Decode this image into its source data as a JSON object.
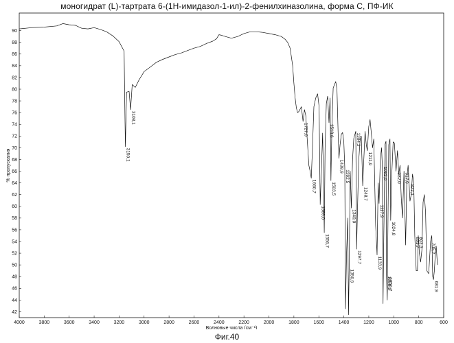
{
  "title": "моногидрат (L)-тартрата 6-(1Н-имидазол-1-ил)-2-фенилхиназолина, форма С, ПФ-ИК",
  "caption": "Фиг.40",
  "chart_data": {
    "type": "line",
    "ylabel": "% пропускания",
    "xlabel": "Волновые числа (см⁻¹)",
    "xlim": [
      4000,
      600
    ],
    "ylim": [
      41,
      93
    ],
    "x_ticks": [
      4000,
      3800,
      3600,
      3400,
      3200,
      3000,
      2800,
      2600,
      2400,
      2200,
      2000,
      1800,
      1600,
      1400,
      1200,
      1000,
      800,
      600
    ],
    "y_ticks": [
      42,
      44,
      46,
      48,
      50,
      52,
      54,
      56,
      58,
      60,
      62,
      64,
      66,
      68,
      70,
      72,
      74,
      76,
      78,
      80,
      82,
      84,
      86,
      88,
      90
    ],
    "grid": false,
    "series": [
      {
        "x": [
          4000,
          3900,
          3800,
          3700,
          3650,
          3600,
          3550,
          3500,
          3450,
          3400,
          3350,
          3300,
          3250,
          3200,
          3160,
          3150.1,
          3140,
          3120,
          3108.1,
          3095,
          3070,
          3040,
          3000,
          2950,
          2900,
          2850,
          2800,
          2750,
          2700,
          2650,
          2600,
          2550,
          2500,
          2450,
          2420,
          2400,
          2380,
          2350,
          2300,
          2250,
          2200,
          2150,
          2100,
          2050,
          2000,
          1950,
          1900,
          1870,
          1850,
          1830,
          1810,
          1800,
          1790,
          1780,
          1770,
          1760,
          1740,
          1727,
          1715,
          1705,
          1695,
          1680,
          1670,
          1660.7,
          1650,
          1640,
          1625,
          1610,
          1598,
          1589,
          1580,
          1570,
          1562,
          1556.7,
          1550,
          1540,
          1530,
          1518.6,
          1510,
          1503.5,
          1495,
          1485,
          1475,
          1465,
          1455,
          1445,
          1438.9,
          1430,
          1420,
          1410,
          1400,
          1392.5,
          1386.9,
          1378,
          1368,
          1362.5,
          1356.9,
          1349,
          1340,
          1330,
          1320,
          1304.3,
          1297.7,
          1290,
          1280,
          1270,
          1260,
          1248.7,
          1240,
          1230,
          1220,
          1211.9,
          1200,
          1190,
          1180,
          1170,
          1160,
          1145,
          1133.9,
          1125,
          1117.9,
          1108,
          1098,
          1092,
          1086,
          1080,
          1070,
          1062,
          1058.1,
          1052,
          1045,
          1040,
          1030,
          1024.8,
          1015,
          1005,
          995,
          982,
          970,
          960,
          950,
          940,
          930,
          917.9,
          905,
          895,
          885,
          877.1,
          870,
          860,
          850,
          840,
          831.7,
          820,
          810,
          803.3,
          795,
          785,
          775,
          765,
          755,
          745,
          735,
          720,
          705.2,
          695,
          688,
          681.9,
          675,
          668,
          660,
          650
        ],
        "y": [
          90.3,
          90.5,
          90.6,
          90.8,
          91.2,
          91.0,
          90.9,
          90.4,
          90.3,
          90.5,
          90.2,
          89.8,
          89.1,
          88.1,
          86.5,
          70.2,
          79.5,
          79.6,
          76.5,
          80.8,
          80.3,
          81.6,
          83.0,
          83.8,
          84.6,
          85.1,
          85.5,
          85.9,
          86.2,
          86.6,
          87.0,
          87.3,
          87.8,
          88.2,
          88.6,
          89.3,
          89.2,
          89.0,
          88.7,
          89.0,
          89.5,
          89.8,
          89.8,
          89.7,
          89.5,
          89.3,
          89.0,
          88.5,
          88.0,
          87.0,
          84.0,
          81.0,
          78.5,
          76.8,
          76.0,
          76.2,
          77.0,
          74.5,
          76.5,
          75.5,
          72.0,
          67.0,
          66.0,
          64.8,
          70.5,
          77.0,
          78.5,
          79.2,
          77.0,
          60.3,
          66.0,
          72.5,
          64.0,
          55.5,
          70.0,
          77.5,
          78.8,
          74.3,
          78.5,
          64.4,
          74.0,
          80.2,
          80.8,
          81.3,
          80.0,
          72.0,
          68.2,
          70.5,
          72.3,
          72.6,
          71.0,
          66.5,
          42.5,
          52.0,
          58.0,
          41.5,
          49.5,
          66.0,
          59.7,
          68.0,
          71.6,
          72.8,
          52.7,
          60.0,
          68.0,
          71.2,
          72.0,
          63.5,
          68.0,
          72.8,
          70.5,
          69.5,
          73.6,
          74.8,
          72.5,
          70.0,
          71.5,
          56.8,
          51.7,
          64.0,
          60.5,
          68.0,
          70.0,
          67.0,
          43.4,
          55.0,
          70.6,
          71.1,
          48.3,
          44.0,
          60.0,
          70.5,
          71.5,
          57.6,
          66.0,
          71.0,
          70.8,
          66.0,
          69.5,
          65.5,
          67.0,
          61.5,
          58.0,
          66.0,
          53.4,
          65.0,
          67.0,
          64.0,
          60.9,
          62.0,
          65.5,
          64.0,
          55.0,
          49.0,
          49.0,
          55.0,
          52.0,
          50.5,
          52.5,
          60.7,
          62.0,
          59.0,
          49.0,
          48.5,
          54.0,
          55.0,
          48.0,
          47.5,
          49.0,
          51.5,
          53.2,
          50.0
        ]
      }
    ],
    "peak_labels": [
      {
        "x": 3150.1,
        "text": "3150,1"
      },
      {
        "x": 3108.1,
        "text": "3108,1"
      },
      {
        "x": 1727.0,
        "text": "1727,0"
      },
      {
        "x": 1660.7,
        "text": "1660,7"
      },
      {
        "x": 1589.0,
        "text": "1589,0"
      },
      {
        "x": 1556.7,
        "text": "1556,7"
      },
      {
        "x": 1518.6,
        "text": "1518,6"
      },
      {
        "x": 1503.5,
        "text": "1503,5"
      },
      {
        "x": 1438.9,
        "text": "1438,9"
      },
      {
        "x": 1392.5,
        "text": "1392,5"
      },
      {
        "x": 1356.9,
        "text": "1356,9"
      },
      {
        "x": 1340.0,
        "text": "1340,0"
      },
      {
        "x": 1304.3,
        "text": "1304,3"
      },
      {
        "x": 1297.7,
        "text": "1297,7"
      },
      {
        "x": 1248.7,
        "text": "1248,7"
      },
      {
        "x": 1211.9,
        "text": "1211,9"
      },
      {
        "x": 1133.9,
        "text": "1133,9"
      },
      {
        "x": 1117.9,
        "text": "1117,9"
      },
      {
        "x": 1092.0,
        "text": "1092,0"
      },
      {
        "x": 1058.1,
        "text": "1058,1"
      },
      {
        "x": 1050.2,
        "text": "1050,2"
      },
      {
        "x": 1024.8,
        "text": "1024,8"
      },
      {
        "x": 982.0,
        "text": "982,0"
      },
      {
        "x": 917.9,
        "text": "917,9"
      },
      {
        "x": 877.1,
        "text": "877,1"
      },
      {
        "x": 831.7,
        "text": "831,7"
      },
      {
        "x": 803.3,
        "text": "803,3"
      },
      {
        "x": 705.2,
        "text": "705,2"
      },
      {
        "x": 681.9,
        "text": "681,9"
      }
    ]
  }
}
